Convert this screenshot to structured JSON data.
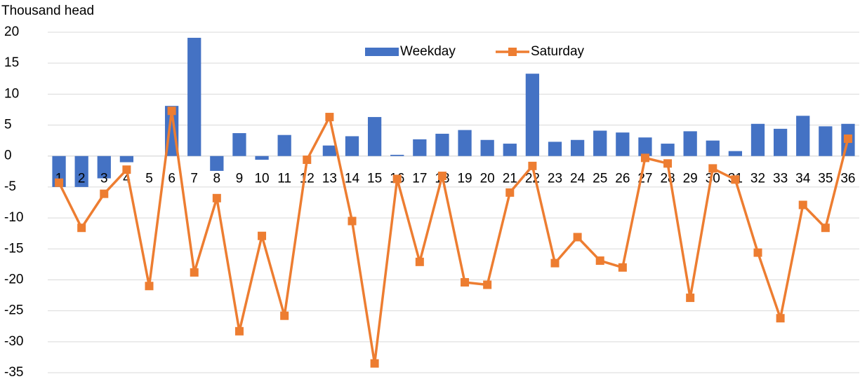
{
  "chart_data": {
    "type": "bar_line",
    "y_label": "Thousand head",
    "categories": [
      "1",
      "2",
      "3",
      "4",
      "5",
      "6",
      "7",
      "8",
      "9",
      "10",
      "11",
      "12",
      "13",
      "14",
      "15",
      "16",
      "17",
      "18",
      "19",
      "20",
      "21",
      "22",
      "23",
      "24",
      "25",
      "26",
      "27",
      "28",
      "29",
      "30",
      "31",
      "32",
      "33",
      "34",
      "35",
      "36"
    ],
    "series": [
      {
        "name": "Weekday",
        "type": "bar",
        "color": "#4472c4",
        "values": [
          -5.0,
          -5.0,
          -3.6,
          -1.0,
          0,
          8.1,
          19.1,
          -2.4,
          3.7,
          -0.6,
          3.4,
          0,
          1.7,
          3.2,
          6.3,
          0.2,
          2.7,
          3.6,
          4.2,
          2.6,
          2.0,
          13.3,
          2.3,
          2.6,
          4.1,
          3.8,
          3.0,
          2.0,
          4.0,
          2.5,
          0.8,
          5.2,
          4.4,
          6.5,
          4.8,
          5.2
        ]
      },
      {
        "name": "Saturday",
        "type": "line",
        "color": "#ed7d31",
        "values": [
          -4.3,
          -11.6,
          -6.1,
          -2.2,
          -21.0,
          7.3,
          -18.8,
          -6.8,
          -28.3,
          -12.9,
          -25.8,
          -0.6,
          6.3,
          -10.5,
          -33.5,
          -3.7,
          -17.1,
          -3.2,
          -20.4,
          -20.8,
          -5.9,
          -1.6,
          -17.3,
          -13.1,
          -16.9,
          -18.0,
          -0.3,
          -1.2,
          -22.9,
          -2.0,
          -3.8,
          -15.6,
          -26.2,
          -7.9,
          -11.6,
          2.8
        ]
      }
    ],
    "ylim": [
      -35,
      20
    ],
    "yticks": [
      -35,
      -30,
      -25,
      -20,
      -15,
      -10,
      -5,
      0,
      5,
      10,
      15,
      20
    ],
    "grid": true,
    "legend": "top"
  }
}
